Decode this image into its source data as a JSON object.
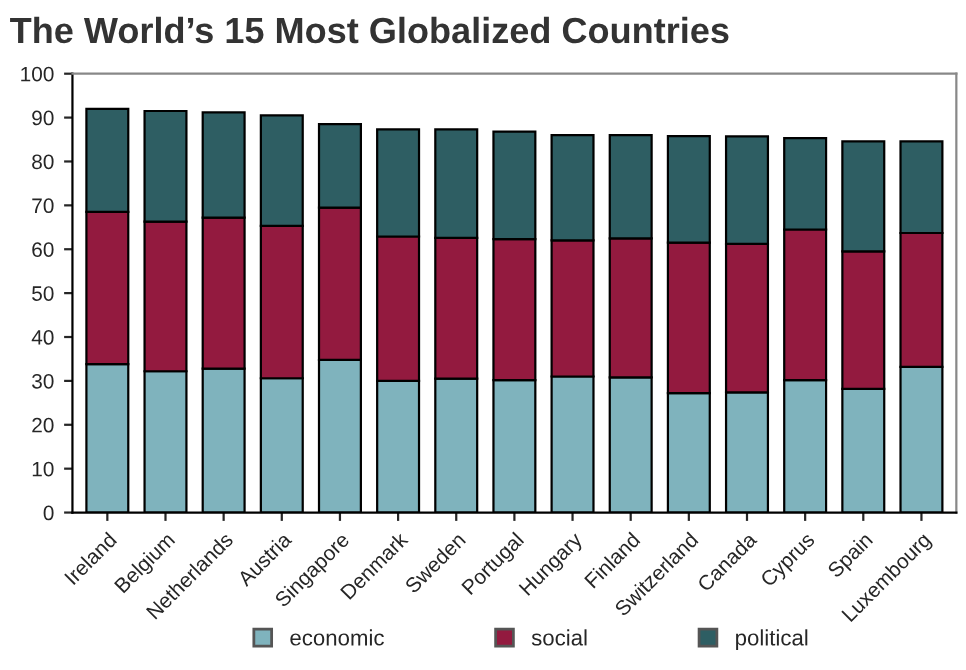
{
  "chart_data": {
    "type": "bar",
    "title": "The World’s 15 Most Globalized Countries",
    "stacked": true,
    "categories": [
      "Ireland",
      "Belgium",
      "Netherlands",
      "Austria",
      "Singapore",
      "Denmark",
      "Sweden",
      "Portugal",
      "Hungary",
      "Finland",
      "Switzerland",
      "Canada",
      "Cyprus",
      "Spain",
      "Luxembourg"
    ],
    "series": [
      {
        "name": "economic",
        "color": "#7fb3bd",
        "values": [
          33.8,
          32.2,
          32.8,
          30.6,
          34.8,
          30,
          30.5,
          30.2,
          31,
          30.8,
          27.2,
          27.4,
          30.2,
          28.2,
          33.2
        ]
      },
      {
        "name": "social",
        "color": "#931a3f",
        "values": [
          34.7,
          34.1,
          34.4,
          34.7,
          34.7,
          32.9,
          32.1,
          32.1,
          31,
          31.7,
          34.3,
          33.8,
          34.3,
          31.3,
          30.5
        ]
      },
      {
        "name": "political",
        "color": "#2e5e63",
        "values": [
          23.5,
          25.2,
          24,
          25.2,
          19,
          24.4,
          24.7,
          24.5,
          24,
          23.5,
          24.3,
          24.5,
          20.8,
          25.1,
          20.9
        ]
      }
    ],
    "ylim": [
      0,
      100
    ],
    "yticks": [
      0,
      10,
      20,
      30,
      40,
      50,
      60,
      70,
      80,
      90,
      100
    ],
    "grid": false,
    "legend": "bottom"
  }
}
